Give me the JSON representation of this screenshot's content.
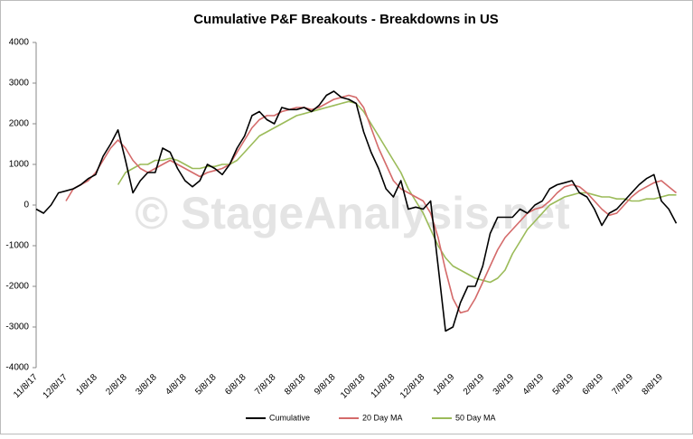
{
  "chart_data": {
    "type": "line",
    "title": "Cumulative P&F Breakouts - Breakdowns in US",
    "watermark": "© StageAnalysis.net",
    "categories": [
      "11/8/17",
      null,
      null,
      null,
      "12/8/17",
      null,
      null,
      null,
      "1/8/18",
      null,
      null,
      null,
      "2/8/18",
      null,
      null,
      null,
      "3/8/18",
      null,
      null,
      null,
      "4/8/18",
      null,
      null,
      null,
      "5/8/18",
      null,
      null,
      null,
      "6/8/18",
      null,
      null,
      null,
      "7/8/18",
      null,
      null,
      null,
      "8/8/18",
      null,
      null,
      null,
      "9/8/18",
      null,
      null,
      null,
      "10/8/18",
      null,
      null,
      null,
      "11/8/18",
      null,
      null,
      null,
      "12/8/18",
      null,
      null,
      null,
      "1/8/19",
      null,
      null,
      null,
      "2/8/19",
      null,
      null,
      null,
      "3/8/19",
      null,
      null,
      null,
      "4/8/19",
      null,
      null,
      null,
      "5/8/19",
      null,
      null,
      null,
      "6/8/19",
      null,
      null,
      null,
      "7/8/19",
      null,
      null,
      null,
      "8/8/19",
      null,
      null
    ],
    "series": [
      {
        "name": "Cumulative",
        "color": "#000000",
        "values": [
          -100,
          -200,
          0,
          300,
          350,
          400,
          500,
          650,
          750,
          1200,
          1500,
          1850,
          1100,
          300,
          600,
          800,
          800,
          1400,
          1300,
          900,
          600,
          450,
          600,
          1000,
          900,
          750,
          1000,
          1400,
          1700,
          2200,
          2300,
          2100,
          2000,
          2400,
          2350,
          2350,
          2400,
          2300,
          2450,
          2700,
          2800,
          2650,
          2600,
          2500,
          1800,
          1300,
          900,
          400,
          200,
          600,
          -100,
          -50,
          -100,
          100,
          -1500,
          -3100,
          -3000,
          -2400,
          -2000,
          -2000,
          -1500,
          -700,
          -300,
          -300,
          -300,
          -100,
          -200,
          0,
          100,
          400,
          500,
          550,
          600,
          300,
          200,
          -100,
          -500,
          -200,
          -100,
          100,
          300,
          500,
          650,
          750,
          100,
          -100,
          -450
        ]
      },
      {
        "name": "20 Day MA",
        "color": "#d46a6a",
        "values": [
          null,
          null,
          null,
          null,
          100,
          400,
          500,
          600,
          800,
          1100,
          1400,
          1600,
          1400,
          1100,
          900,
          800,
          900,
          1000,
          1100,
          1000,
          900,
          800,
          700,
          800,
          850,
          900,
          1000,
          1300,
          1600,
          1900,
          2100,
          2200,
          2200,
          2300,
          2350,
          2400,
          2400,
          2350,
          2400,
          2500,
          2600,
          2650,
          2700,
          2650,
          2400,
          1900,
          1400,
          1000,
          600,
          400,
          300,
          200,
          100,
          -200,
          -800,
          -1600,
          -2300,
          -2650,
          -2600,
          -2300,
          -1900,
          -1500,
          -1100,
          -800,
          -600,
          -400,
          -200,
          -100,
          -50,
          100,
          300,
          450,
          500,
          450,
          300,
          100,
          -100,
          -250,
          -200,
          0,
          200,
          350,
          450,
          550,
          600,
          450,
          300
        ]
      },
      {
        "name": "50 Day MA",
        "color": "#9bbb59",
        "values": [
          null,
          null,
          null,
          null,
          null,
          null,
          null,
          null,
          null,
          null,
          null,
          500,
          800,
          900,
          1000,
          1000,
          1100,
          1100,
          1150,
          1100,
          1000,
          900,
          900,
          950,
          950,
          1000,
          1000,
          1100,
          1300,
          1500,
          1700,
          1800,
          1900,
          2000,
          2100,
          2200,
          2250,
          2300,
          2350,
          2400,
          2450,
          2500,
          2550,
          2500,
          2300,
          2000,
          1700,
          1400,
          1100,
          800,
          400,
          100,
          -200,
          -600,
          -1000,
          -1300,
          -1500,
          -1600,
          -1700,
          -1800,
          -1850,
          -1900,
          -1800,
          -1600,
          -1200,
          -900,
          -600,
          -400,
          -200,
          0,
          100,
          200,
          250,
          300,
          300,
          250,
          200,
          200,
          150,
          150,
          100,
          100,
          150,
          150,
          200,
          250,
          250
        ]
      }
    ],
    "ylim": [
      -4000,
      4000
    ],
    "yticks": [
      -4000,
      -3000,
      -2000,
      -1000,
      0,
      1000,
      2000,
      3000,
      4000
    ],
    "grid": false,
    "legend": "bottom"
  }
}
